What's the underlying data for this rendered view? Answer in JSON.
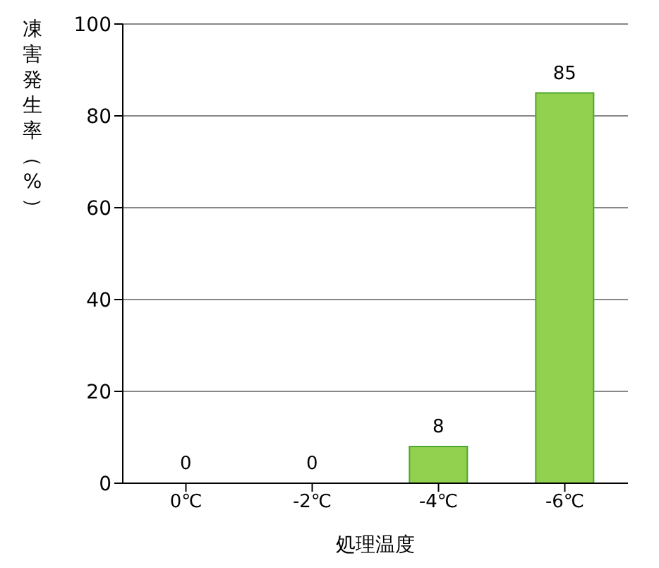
{
  "chart_data": {
    "type": "bar",
    "ylabel": "凍害発生率（%）",
    "xlabel": "処理温度",
    "categories": [
      "0℃",
      "-2℃",
      "-4℃",
      "-6℃"
    ],
    "values": [
      0,
      0,
      8,
      85
    ],
    "color": "#92d050",
    "ylim": [
      0,
      100
    ],
    "yticks": [
      0,
      20,
      40,
      60,
      80,
      100
    ],
    "grid": "y",
    "data_labels": true
  }
}
